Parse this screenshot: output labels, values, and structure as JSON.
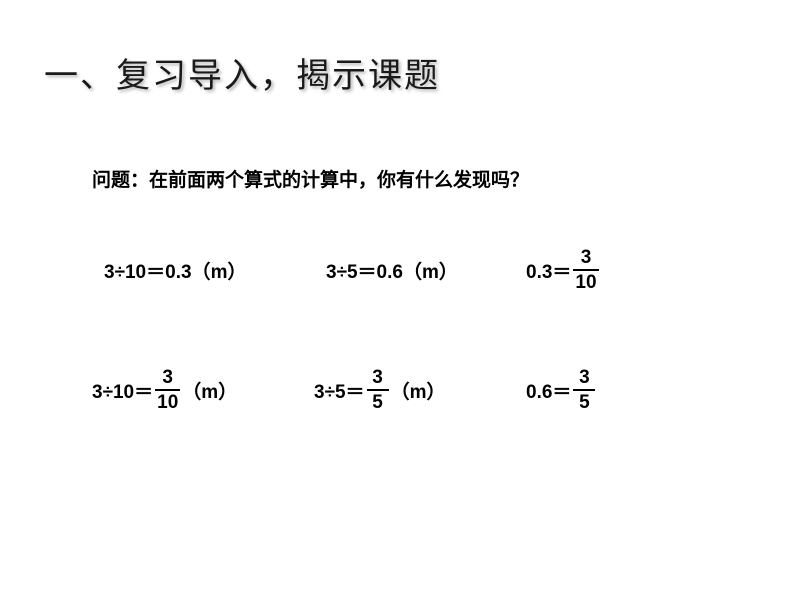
{
  "title": "一、复习导入，揭示课题",
  "question": "问题：在前面两个算式的计算中，你有什么发现吗？",
  "row1": {
    "eq1": {
      "expr": "3÷10＝0.3",
      "unit_open": "（",
      "unit_m": "m",
      "unit_close": "）"
    },
    "eq2": {
      "expr": "3÷5＝0.6",
      "unit_open": "（",
      "unit_m": "m",
      "unit_close": "）"
    },
    "eq3": {
      "lhs": "0.3＝",
      "num": "3",
      "den": "10"
    }
  },
  "row2": {
    "eq1": {
      "lhs": "3÷10＝",
      "num": "3",
      "den": "10",
      "unit_open": "（",
      "unit_m": "m",
      "unit_close": "）"
    },
    "eq2": {
      "lhs": "3÷5＝",
      "num": "3",
      "den": "5",
      "unit_open": "（",
      "unit_m": "m",
      "unit_close": "）"
    },
    "eq3": {
      "lhs": "0.6＝",
      "num": "3",
      "den": "5"
    }
  },
  "style": {
    "title_fontsize": 34,
    "body_fontsize": 19,
    "fraction_fontsize": 19,
    "text_color": "#000000",
    "title_color": "#1a1a1a",
    "background_color": "#ffffff",
    "fraction_bar_color": "#000000"
  }
}
